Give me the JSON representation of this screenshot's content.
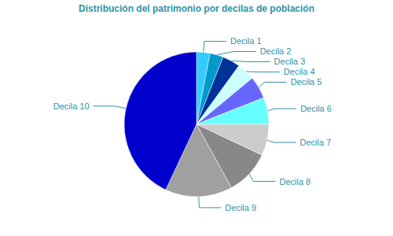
{
  "chart_data": {
    "type": "pie",
    "title": "Distribución del patrimonio por decilas de población",
    "categories": [
      "Decila 1",
      "Decila 2",
      "Decila 3",
      "Decila 4",
      "Decila 5",
      "Decila 6",
      "Decila 7",
      "Decila 8",
      "Decila 9",
      "Decila 10"
    ],
    "values": [
      3,
      3,
      4,
      4,
      5,
      6,
      7,
      10,
      15,
      43
    ],
    "colors": [
      "#33ccff",
      "#0099cc",
      "#003399",
      "#ccffff",
      "#6666ff",
      "#66ffff",
      "#cccccc",
      "#888888",
      "#a0a0a0",
      "#0000cc"
    ]
  }
}
